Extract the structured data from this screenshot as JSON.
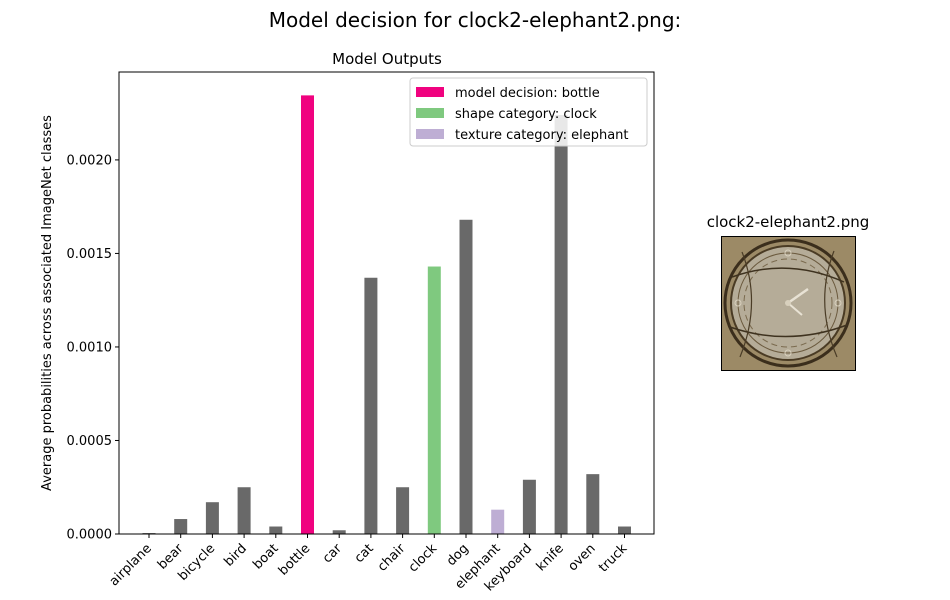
{
  "figure_title": "Model decision for clock2-elephant2.png:",
  "thumbnail": {
    "title": "clock2-elephant2.png"
  },
  "colors": {
    "default_bar": "#696969",
    "decision": "#f0027f",
    "shape": "#7fc97f",
    "texture": "#beaed4"
  },
  "chart_data": {
    "type": "bar",
    "title": "Model Outputs",
    "xlabel": "",
    "ylabel": "Average probabilities across associated ImageNet classes",
    "ylim": [
      0,
      0.00247
    ],
    "yticks": [
      "0.0000",
      "0.0005",
      "0.0010",
      "0.0015",
      "0.0020"
    ],
    "ytick_values": [
      0,
      0.0005,
      0.001,
      0.0015,
      0.002
    ],
    "categories": [
      "airplane",
      "bear",
      "bicycle",
      "bird",
      "boat",
      "bottle",
      "car",
      "cat",
      "chair",
      "clock",
      "dog",
      "elephant",
      "keyboard",
      "knife",
      "oven",
      "truck"
    ],
    "values": [
      5e-06,
      8e-05,
      0.00017,
      0.00025,
      4e-05,
      0.002345,
      2e-05,
      0.00137,
      0.00025,
      0.00143,
      0.00168,
      0.00013,
      0.00029,
      0.00224,
      0.00032,
      4e-05
    ],
    "highlight": {
      "bottle": "decision",
      "clock": "shape",
      "elephant": "texture"
    },
    "legend": {
      "placement": "top-right",
      "entries": [
        {
          "key": "decision",
          "label": "model decision: bottle"
        },
        {
          "key": "shape",
          "label": "shape category: clock"
        },
        {
          "key": "texture",
          "label": "texture category: elephant"
        }
      ]
    }
  }
}
